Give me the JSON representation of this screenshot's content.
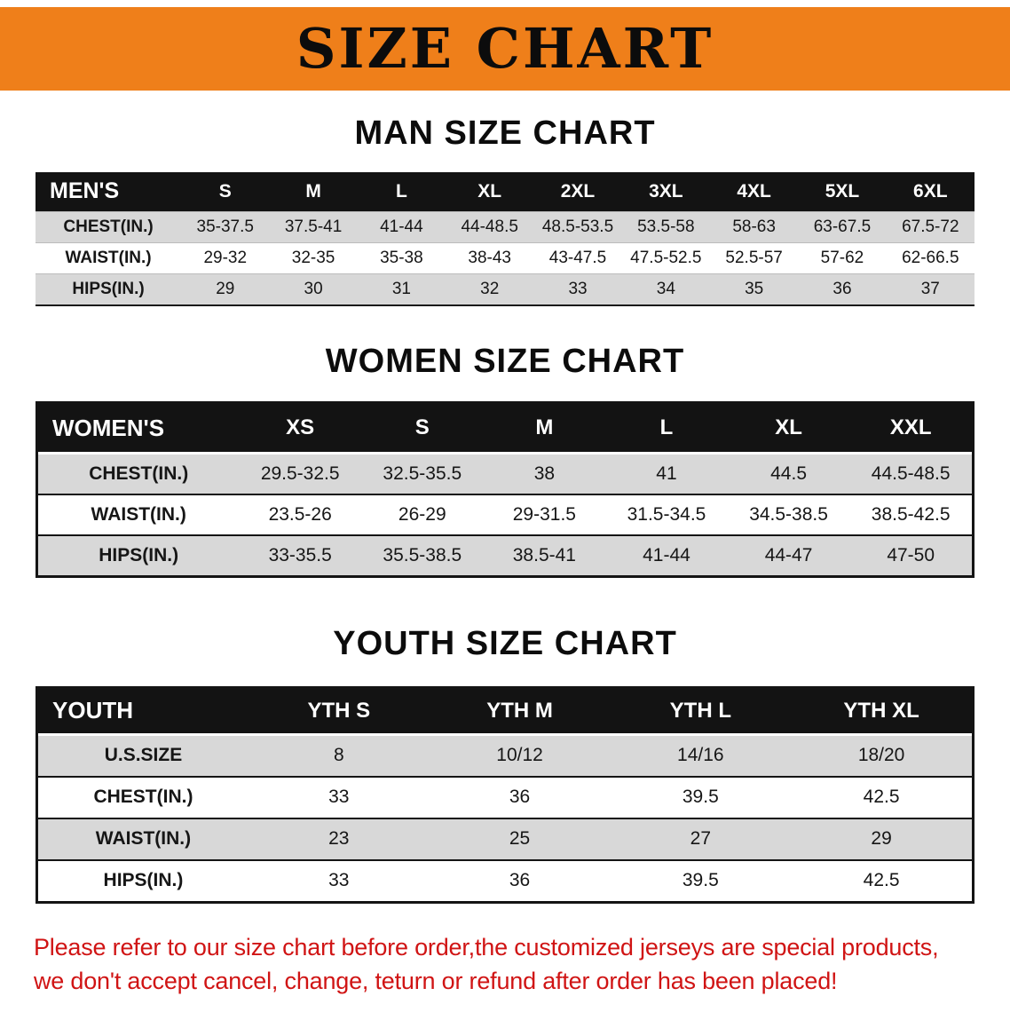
{
  "banner": {
    "title": "SIZE CHART"
  },
  "colors": {
    "banner_bg": "#ef7f1a",
    "header_bg": "#131313",
    "stripe": "#d8d8d8",
    "disclaimer_red": "#d01414"
  },
  "sections": [
    {
      "heading": "MAN SIZE CHART",
      "table": {
        "name": "mens",
        "header": [
          "MEN'S",
          "S",
          "M",
          "L",
          "XL",
          "2XL",
          "3XL",
          "4XL",
          "5XL",
          "6XL"
        ],
        "rows": [
          [
            "CHEST(IN.)",
            "35-37.5",
            "37.5-41",
            "41-44",
            "44-48.5",
            "48.5-53.5",
            "53.5-58",
            "58-63",
            "63-67.5",
            "67.5-72"
          ],
          [
            "WAIST(IN.)",
            "29-32",
            "32-35",
            "35-38",
            "38-43",
            "43-47.5",
            "47.5-52.5",
            "52.5-57",
            "57-62",
            "62-66.5"
          ],
          [
            "HIPS(IN.)",
            "29",
            "30",
            "31",
            "32",
            "33",
            "34",
            "35",
            "36",
            "37"
          ]
        ]
      }
    },
    {
      "heading": "WOMEN SIZE CHART",
      "table": {
        "name": "womens",
        "header": [
          "WOMEN'S",
          "XS",
          "S",
          "M",
          "L",
          "XL",
          "XXL"
        ],
        "rows": [
          [
            "CHEST(IN.)",
            "29.5-32.5",
            "32.5-35.5",
            "38",
            "41",
            "44.5",
            "44.5-48.5"
          ],
          [
            "WAIST(IN.)",
            "23.5-26",
            "26-29",
            "29-31.5",
            "31.5-34.5",
            "34.5-38.5",
            "38.5-42.5"
          ],
          [
            "HIPS(IN.)",
            "33-35.5",
            "35.5-38.5",
            "38.5-41",
            "41-44",
            "44-47",
            "47-50"
          ]
        ]
      }
    },
    {
      "heading": "YOUTH SIZE CHART",
      "table": {
        "name": "youth",
        "header": [
          "YOUTH",
          "YTH S",
          "YTH M",
          "YTH L",
          "YTH XL"
        ],
        "rows": [
          [
            "U.S.SIZE",
            "8",
            "10/12",
            "14/16",
            "18/20"
          ],
          [
            "CHEST(IN.)",
            "33",
            "36",
            "39.5",
            "42.5"
          ],
          [
            "WAIST(IN.)",
            "23",
            "25",
            "27",
            "29"
          ],
          [
            "HIPS(IN.)",
            "33",
            "36",
            "39.5",
            "42.5"
          ]
        ]
      }
    }
  ],
  "disclaimer": {
    "lines": [
      "Please refer to our size chart before order,the customized jerseys are special products,",
      "we don't accept cancel, change, teturn or refund after order has been placed!"
    ]
  }
}
